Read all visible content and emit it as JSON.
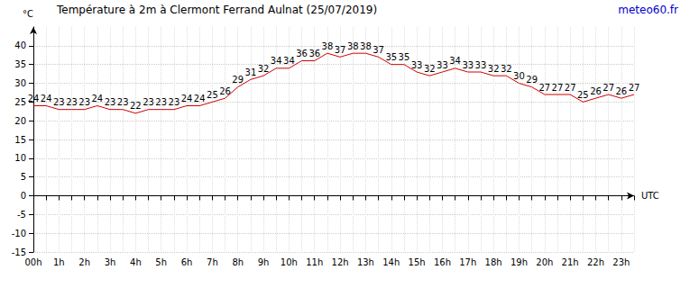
{
  "chart_data": {
    "type": "line",
    "title": "Température à 2m à Clermont Ferrand Aulnat (25/07/2019)",
    "x_label": "UTC",
    "y_label": "°C",
    "annotations": [
      "meteo60.fr"
    ],
    "categories": [
      "00h",
      null,
      "1h",
      null,
      "2h",
      null,
      "3h",
      null,
      "4h",
      null,
      "5h",
      null,
      "6h",
      null,
      "7h",
      null,
      "8h",
      null,
      "9h",
      null,
      "10h",
      null,
      "11h",
      null,
      "12h",
      null,
      "13h",
      null,
      "14h",
      null,
      "15h",
      null,
      "16h",
      null,
      "17h",
      null,
      "18h",
      null,
      "19h",
      null,
      "20h",
      null,
      "21h",
      null,
      "22h",
      null,
      "23h",
      null
    ],
    "values": [
      24,
      24,
      23,
      23,
      23,
      24,
      23,
      23,
      22,
      23,
      23,
      23,
      24,
      24,
      25,
      26,
      29,
      31,
      32,
      34,
      34,
      36,
      36,
      38,
      37,
      38,
      38,
      37,
      35,
      35,
      33,
      32,
      33,
      34,
      33,
      33,
      32,
      32,
      30,
      29,
      27,
      27,
      27,
      25,
      26,
      27,
      26,
      27
    ],
    "color": "#d00000",
    "ylim": [
      -15,
      45
    ],
    "yticks": [
      -15,
      -10,
      -5,
      0,
      5,
      10,
      15,
      20,
      25,
      30,
      35,
      40
    ],
    "grid": true,
    "data_labels": true
  }
}
